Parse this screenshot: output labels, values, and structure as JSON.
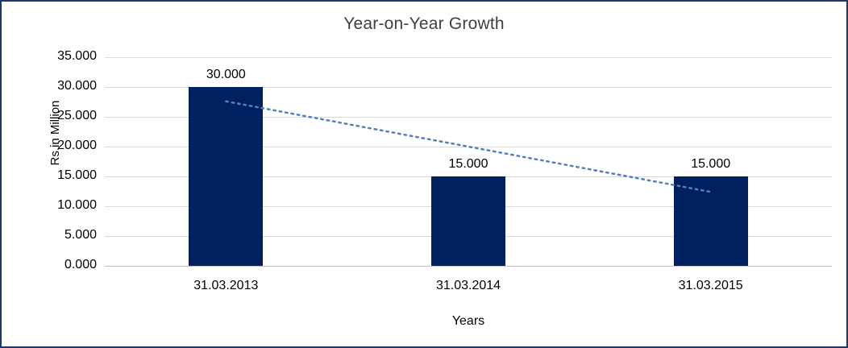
{
  "chart_data": {
    "type": "bar",
    "title": "Year-on-Year Growth",
    "xlabel": "Years",
    "ylabel": "Rs.in Million",
    "categories": [
      "31.03.2013",
      "31.03.2014",
      "31.03.2015"
    ],
    "series": [
      {
        "name": "Rs.in Million",
        "values": [
          30.0,
          15.0,
          15.0
        ]
      }
    ],
    "value_labels": [
      "30.000",
      "15.000",
      "15.000"
    ],
    "ylim": [
      0,
      35
    ],
    "ytick_step": 5,
    "ytick_labels": [
      "0.000",
      "5.000",
      "10.000",
      "15.000",
      "20.000",
      "25.000",
      "30.000",
      "35.000"
    ],
    "grid": true,
    "legend": "none",
    "bar_color": "#002060",
    "gridline_color": "#d9d9d9",
    "border_color": "#1f3864",
    "trendline": {
      "style": "dotted",
      "color": "#4f81bd",
      "points": [
        27.6,
        20.0,
        12.4
      ]
    }
  }
}
